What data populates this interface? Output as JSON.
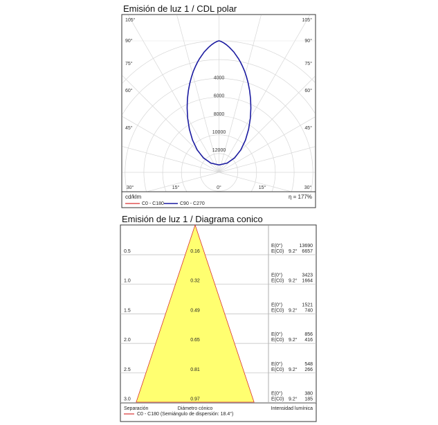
{
  "polar": {
    "title": "Emisión de luz 1 / CDL polar",
    "unit": "cd/klm",
    "efficiency": "η = 177%",
    "legend": [
      {
        "label": "C0 - C180",
        "color": "#d93030"
      },
      {
        "label": "C90 - C270",
        "color": "#1a1aa0"
      }
    ]
  },
  "conic": {
    "title": "Emisión de luz 1 / Diagrama conico",
    "footer": {
      "separation": "Separación",
      "diameter": "Diámetro cónico",
      "intensity": "Intensidad lumínica",
      "legend": "C0 - C180 (Semiángulo de dispersión: 18.4°)",
      "legend_color": "#d93030"
    },
    "e_label": "E(0°)",
    "e_c0_label": "E(C0)",
    "angle_label": "9.2°"
  },
  "chart_data": [
    {
      "type": "polar",
      "title": "Emisión de luz 1 / CDL polar",
      "angle_ticks": [
        "105°",
        "90°",
        "75°",
        "60°",
        "45°",
        "30°",
        "15°",
        "0°",
        "15°",
        "30°",
        "45°",
        "60°",
        "75°",
        "90°",
        "105°"
      ],
      "radial_ticks": [
        4000,
        6000,
        8000,
        10000,
        12000
      ],
      "radial_max": 14000,
      "series": [
        {
          "name": "C90 - C270",
          "color": "#1a1aa0",
          "angles": [
            0,
            2,
            4,
            6,
            8,
            10,
            12,
            14,
            16,
            18,
            20,
            22,
            24,
            26,
            28,
            30,
            35,
            40,
            45,
            50,
            55,
            60,
            65,
            70,
            75,
            80,
            85,
            90
          ],
          "intensity": [
            13690,
            13500,
            12950,
            12100,
            11050,
            9900,
            8750,
            7650,
            6650,
            5750,
            4950,
            4250,
            3650,
            3100,
            2650,
            2250,
            1500,
            950,
            600,
            370,
            220,
            130,
            70,
            35,
            15,
            6,
            2,
            0
          ]
        }
      ],
      "legend": [
        "C0 - C180",
        "C90 - C270"
      ],
      "unit": "cd/klm",
      "annotation": "η = 177%"
    },
    {
      "type": "table",
      "title": "Emisión de luz 1 / Diagrama conico",
      "half_angle": 18.4,
      "rows": [
        {
          "separation": "0.5",
          "diameter": "0.16",
          "e0": "13690",
          "ec0": "6657"
        },
        {
          "separation": "1.0",
          "diameter": "0.32",
          "e0": "3423",
          "ec0": "1664"
        },
        {
          "separation": "1.5",
          "diameter": "0.49",
          "e0": "1521",
          "ec0": "740"
        },
        {
          "separation": "2.0",
          "diameter": "0.65",
          "e0": "856",
          "ec0": "416"
        },
        {
          "separation": "2.5",
          "diameter": "0.81",
          "e0": "548",
          "ec0": "266"
        },
        {
          "separation": "3.0",
          "diameter": "0.97",
          "e0": "380",
          "ec0": "185"
        }
      ]
    }
  ]
}
